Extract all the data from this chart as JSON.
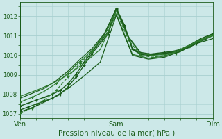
{
  "title": "",
  "xlabel": "Pression niveau de la mer( hPa )",
  "ylabel": "",
  "bg_color": "#cce8e8",
  "grid_color": "#a8d0d0",
  "line_color_dark": "#1a5c1a",
  "line_color_med": "#2d7a2d",
  "ylim": [
    1006.8,
    1012.7
  ],
  "xlim": [
    0,
    48
  ],
  "yticks": [
    1007,
    1008,
    1009,
    1010,
    1011,
    1012
  ],
  "xtick_positions": [
    0,
    24,
    48
  ],
  "xtick_labels": [
    "Ven",
    "Sam",
    "Dim"
  ],
  "series": [
    {
      "x": [
        0,
        2,
        4,
        6,
        8,
        10,
        12,
        14,
        16,
        18,
        20,
        22,
        24,
        26,
        28,
        30,
        32,
        34,
        36,
        38,
        40,
        42,
        44,
        46,
        48
      ],
      "y": [
        1007.2,
        1007.35,
        1007.5,
        1007.65,
        1007.8,
        1008.0,
        1008.4,
        1008.9,
        1009.5,
        1010.1,
        1010.6,
        1011.1,
        1012.35,
        1011.5,
        1010.3,
        1010.05,
        1010.0,
        1010.05,
        1010.1,
        1010.15,
        1010.25,
        1010.4,
        1010.6,
        1010.8,
        1011.0
      ],
      "lw": 1.0,
      "ls": "-",
      "color": "#1a5c1a",
      "marker": true,
      "ms": 3
    },
    {
      "x": [
        0,
        2,
        4,
        6,
        8,
        10,
        12,
        14,
        16,
        18,
        20,
        22,
        24,
        26,
        28,
        30,
        32,
        34,
        36,
        38,
        40,
        42,
        44,
        46,
        48
      ],
      "y": [
        1007.4,
        1007.55,
        1007.7,
        1007.85,
        1008.0,
        1008.2,
        1008.55,
        1009.05,
        1009.65,
        1010.2,
        1010.7,
        1011.2,
        1012.4,
        1011.55,
        1010.35,
        1010.1,
        1010.05,
        1010.1,
        1010.15,
        1010.2,
        1010.3,
        1010.45,
        1010.65,
        1010.85,
        1011.1
      ],
      "lw": 1.0,
      "ls": "-",
      "color": "#1a5c1a",
      "marker": true,
      "ms": 3
    },
    {
      "x": [
        0,
        3,
        6,
        9,
        12,
        15,
        18,
        21,
        24,
        27,
        30,
        33,
        36,
        39,
        42,
        45,
        48
      ],
      "y": [
        1007.05,
        1007.3,
        1007.7,
        1008.2,
        1008.9,
        1009.6,
        1010.2,
        1011.0,
        1012.2,
        1010.8,
        1010.0,
        1009.9,
        1010.0,
        1010.1,
        1010.4,
        1010.75,
        1011.0
      ],
      "lw": 0.9,
      "ls": "--",
      "color": "#2d7a2d",
      "marker": true,
      "ms": 2.5
    },
    {
      "x": [
        0,
        3,
        6,
        9,
        12,
        15,
        18,
        21,
        24,
        27,
        30,
        33,
        36,
        39,
        42,
        45,
        48
      ],
      "y": [
        1007.6,
        1007.85,
        1008.15,
        1008.55,
        1009.1,
        1009.7,
        1010.25,
        1011.05,
        1012.3,
        1010.9,
        1010.1,
        1010.0,
        1010.05,
        1010.15,
        1010.45,
        1010.8,
        1011.05
      ],
      "lw": 0.9,
      "ls": "-",
      "color": "#2d7a2d",
      "marker": true,
      "ms": 2.5
    },
    {
      "x": [
        0,
        3,
        6,
        9,
        12,
        15,
        18,
        21,
        24,
        27,
        30,
        33,
        36,
        39,
        42,
        45,
        48
      ],
      "y": [
        1007.8,
        1008.05,
        1008.3,
        1008.7,
        1009.2,
        1009.8,
        1010.35,
        1011.1,
        1012.4,
        1010.95,
        1010.15,
        1010.05,
        1010.1,
        1010.2,
        1010.5,
        1010.85,
        1011.1
      ],
      "lw": 0.9,
      "ls": "-",
      "color": "#1a5c1a",
      "marker": false,
      "ms": 0
    },
    {
      "x": [
        0,
        4,
        8,
        12,
        16,
        20,
        24,
        28,
        32,
        36,
        40,
        44,
        48
      ],
      "y": [
        1007.9,
        1008.2,
        1008.55,
        1009.0,
        1009.6,
        1010.3,
        1012.1,
        1010.05,
        1009.85,
        1009.95,
        1010.3,
        1010.7,
        1011.0
      ],
      "lw": 0.9,
      "ls": "-",
      "color": "#2d7a2d",
      "marker": false,
      "ms": 0
    },
    {
      "x": [
        0,
        4,
        8,
        12,
        16,
        20,
        24,
        28,
        32,
        36,
        40,
        44,
        48
      ],
      "y": [
        1007.1,
        1007.4,
        1007.8,
        1008.3,
        1008.95,
        1009.65,
        1012.05,
        1010.0,
        1009.8,
        1009.9,
        1010.2,
        1010.6,
        1010.85
      ],
      "lw": 0.9,
      "ls": "-",
      "color": "#1a5c1a",
      "marker": false,
      "ms": 0
    }
  ]
}
